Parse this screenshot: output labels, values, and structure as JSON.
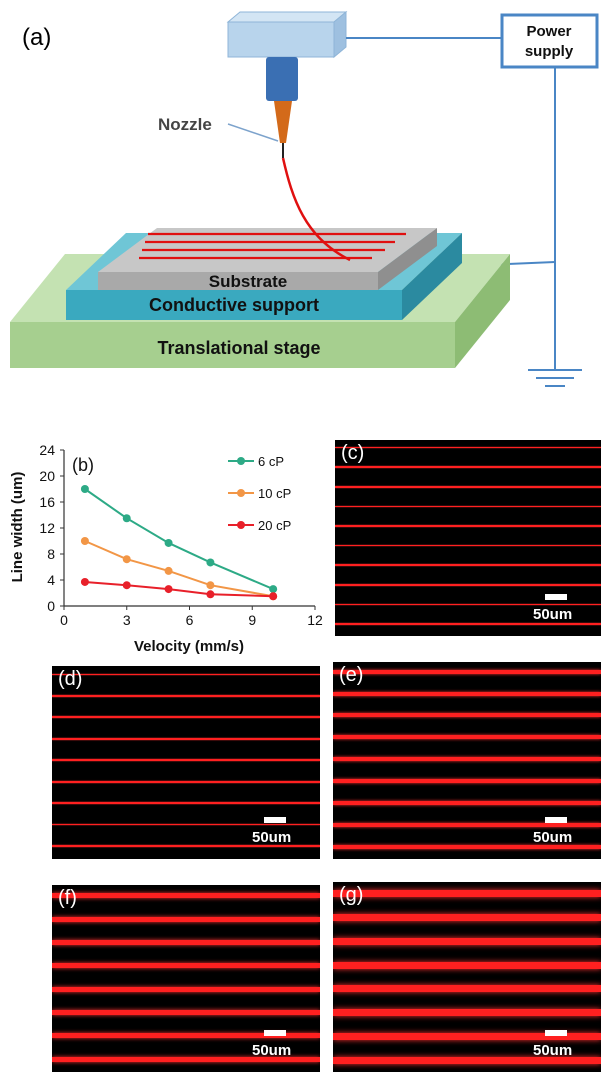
{
  "panel_a": {
    "label": "(a)",
    "power_supply": [
      "Power",
      "supply"
    ],
    "nozzle": "Nozzle",
    "substrate": "Substrate",
    "conductive_support": "Conductive support",
    "translational_stage": "Translational stage",
    "colors": {
      "top_block": "#b8d4ec",
      "nozzle_body": "#3a6fb3",
      "tip": "#d36a1a",
      "filament": "#e01010",
      "substrate": "#a9a9a9",
      "support": "#3aa9bf",
      "stage": "#a6cf8f",
      "wire": "#4a86c5"
    }
  },
  "chart_data": {
    "type": "line",
    "label": "(b)",
    "xlabel": "Velocity (mm/s)",
    "ylabel": "Line width (um)",
    "xlim": [
      0,
      12
    ],
    "ylim": [
      0,
      24
    ],
    "xticks": [
      0,
      3,
      6,
      9,
      12
    ],
    "yticks": [
      0,
      4,
      8,
      12,
      16,
      20,
      24
    ],
    "grid": false,
    "legend_position": "top-right",
    "series": [
      {
        "name": "6 cP",
        "color": "#2daa86",
        "x": [
          1,
          3,
          5,
          7,
          10
        ],
        "y": [
          18.0,
          13.5,
          9.7,
          6.7,
          2.6
        ]
      },
      {
        "name": "10 cP",
        "color": "#f29646",
        "x": [
          1,
          3,
          5,
          7,
          10
        ],
        "y": [
          10.0,
          7.2,
          5.4,
          3.2,
          1.5
        ]
      },
      {
        "name": "20 cP",
        "color": "#e8202a",
        "x": [
          1,
          3,
          5,
          7,
          10
        ],
        "y": [
          3.7,
          3.2,
          2.6,
          1.8,
          1.5
        ]
      }
    ]
  },
  "micrographs": [
    {
      "label": "(c)",
      "scale": "50um",
      "line_count": 10
    },
    {
      "label": "(d)",
      "scale": "50um",
      "line_count": 9
    },
    {
      "label": "(e)",
      "scale": "50um",
      "line_count": 9
    },
    {
      "label": "(f)",
      "scale": "50um",
      "line_count": 8
    },
    {
      "label": "(g)",
      "scale": "50um",
      "line_count": 8
    }
  ]
}
